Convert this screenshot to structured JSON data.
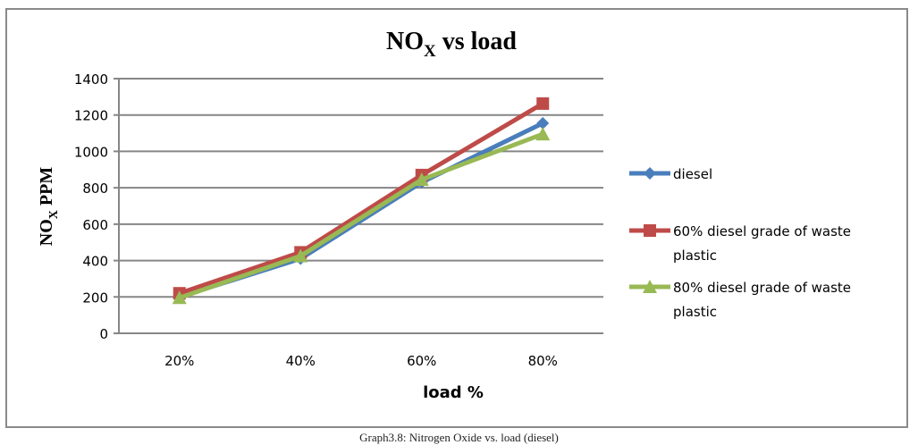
{
  "chart_data": {
    "type": "line",
    "title": "NOx vs load",
    "title_main": "NO",
    "title_sub": "X",
    "title_rest": " vs load",
    "xlabel": "load %",
    "ylabel": "NOx PPM",
    "ylabel_main": "NO",
    "ylabel_sub": "X",
    "ylabel_rest": " PPM",
    "categories": [
      "20%",
      "40%",
      "60%",
      "80%"
    ],
    "ylim": [
      0,
      1400
    ],
    "yticks": [
      0,
      200,
      400,
      600,
      800,
      1000,
      1200,
      1400
    ],
    "grid": true,
    "legend_position": "right",
    "series": [
      {
        "name": "diesel",
        "legend_lines": [
          "diesel"
        ],
        "color": "#4a7ebb",
        "marker": "diamond",
        "values": [
          200,
          410,
          830,
          1155
        ]
      },
      {
        "name": "60%  diesel grade of waste plastic",
        "legend_lines": [
          "60%  diesel grade of waste",
          "plastic"
        ],
        "color": "#be4b48",
        "marker": "square",
        "values": [
          220,
          445,
          870,
          1263
        ]
      },
      {
        "name": "80% diesel grade of waste plastic",
        "legend_lines": [
          "80% diesel grade of waste",
          "plastic"
        ],
        "color": "#98b954",
        "marker": "triangle",
        "values": [
          195,
          425,
          845,
          1095
        ]
      }
    ]
  },
  "caption": "Graph3.8: Nitrogen Oxide vs. load (diesel)"
}
